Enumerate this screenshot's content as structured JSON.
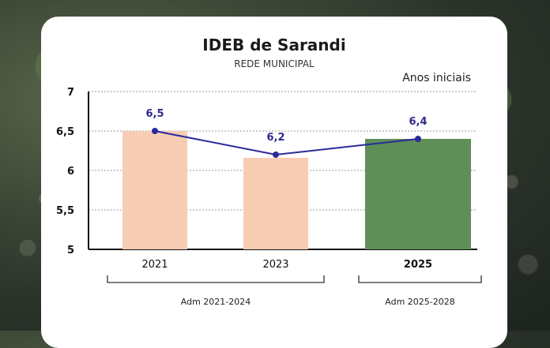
{
  "chart_data": {
    "type": "bar",
    "title": "IDEB de Sarandi",
    "subtitle": "REDE MUNICIPAL",
    "series_label": "Anos iniciais",
    "categories": [
      "2021",
      "2023",
      "2025"
    ],
    "values": [
      6.5,
      6.2,
      6.4
    ],
    "data_labels": [
      "6,5",
      "6,2",
      "6,4"
    ],
    "y_ticks": [
      "7",
      "6,5",
      "6",
      "5,5",
      "5"
    ],
    "ylim": [
      5,
      7
    ],
    "grid": true,
    "line_overlay": true,
    "bar_colors": [
      "#f7cdb4",
      "#f7cdb4",
      "#5e8f56"
    ],
    "line_color": "#2a2a9a",
    "periods": [
      {
        "label": "Adm 2021-2024",
        "categories": [
          "2021",
          "2023"
        ]
      },
      {
        "label": "Adm 2025-2028",
        "categories": [
          "2025"
        ]
      }
    ]
  }
}
